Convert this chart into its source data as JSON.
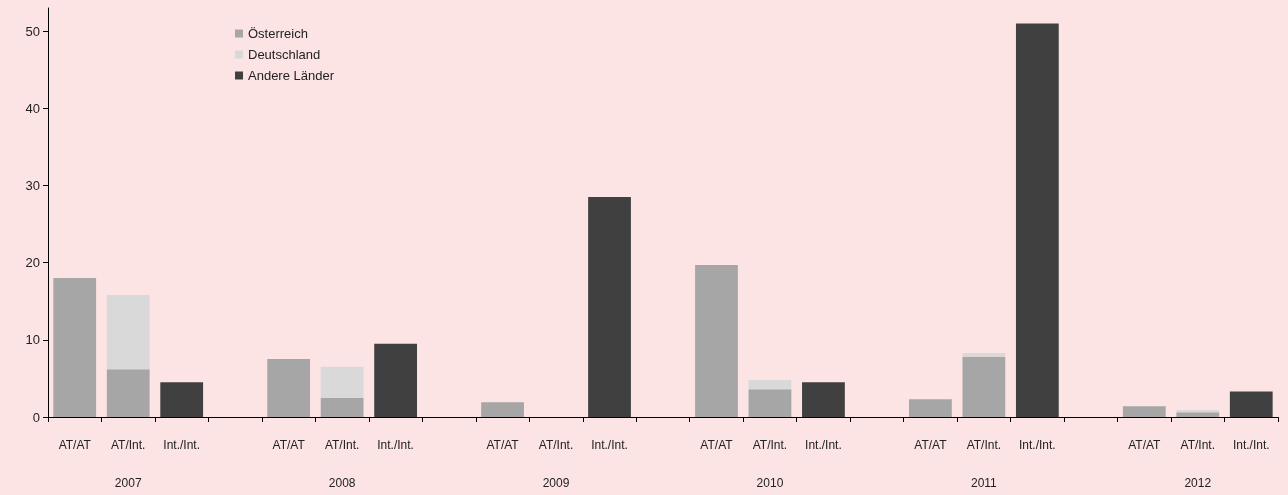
{
  "chart_data": {
    "type": "bar",
    "stacked": true,
    "categories": [
      "AT/AT",
      "AT/Int.",
      "Int./Int.",
      null,
      "AT/AT",
      "AT/Int.",
      "Int./Int.",
      null,
      "AT/AT",
      "AT/Int.",
      "Int./Int.",
      null,
      "AT/AT",
      "AT/Int.",
      "Int./Int.",
      null,
      "AT/AT",
      "AT/Int.",
      "Int./Int.",
      null,
      "AT/AT",
      "AT/Int.",
      "Int./Int."
    ],
    "series": [
      {
        "name": "Österreich",
        "color": "#a6a6a6",
        "values": [
          18,
          6.2,
          null,
          null,
          7.5,
          2.5,
          null,
          null,
          1.9,
          null,
          null,
          null,
          19.7,
          3.6,
          null,
          null,
          2.3,
          7.8,
          null,
          null,
          1.4,
          0.6,
          null
        ]
      },
      {
        "name": "Deutschland",
        "color": "#d9d9d9",
        "values": [
          null,
          9.6,
          null,
          null,
          null,
          4.0,
          null,
          null,
          null,
          null,
          null,
          null,
          null,
          1.2,
          null,
          null,
          null,
          0.5,
          null,
          null,
          null,
          0.3,
          null
        ]
      },
      {
        "name": "Andere Länder",
        "color": "#404040",
        "values": [
          null,
          null,
          4.5,
          null,
          null,
          null,
          9.5,
          null,
          null,
          null,
          28.5,
          null,
          null,
          null,
          4.5,
          null,
          null,
          null,
          51,
          null,
          null,
          null,
          3.3
        ]
      }
    ],
    "ylim": [
      0,
      53
    ],
    "yticks": [
      0,
      10,
      20,
      30,
      40,
      50
    ],
    "annotations": [
      "2007",
      "2008",
      "2009",
      "2010",
      "2011",
      "2012"
    ],
    "legend": "top left",
    "grid": false
  }
}
